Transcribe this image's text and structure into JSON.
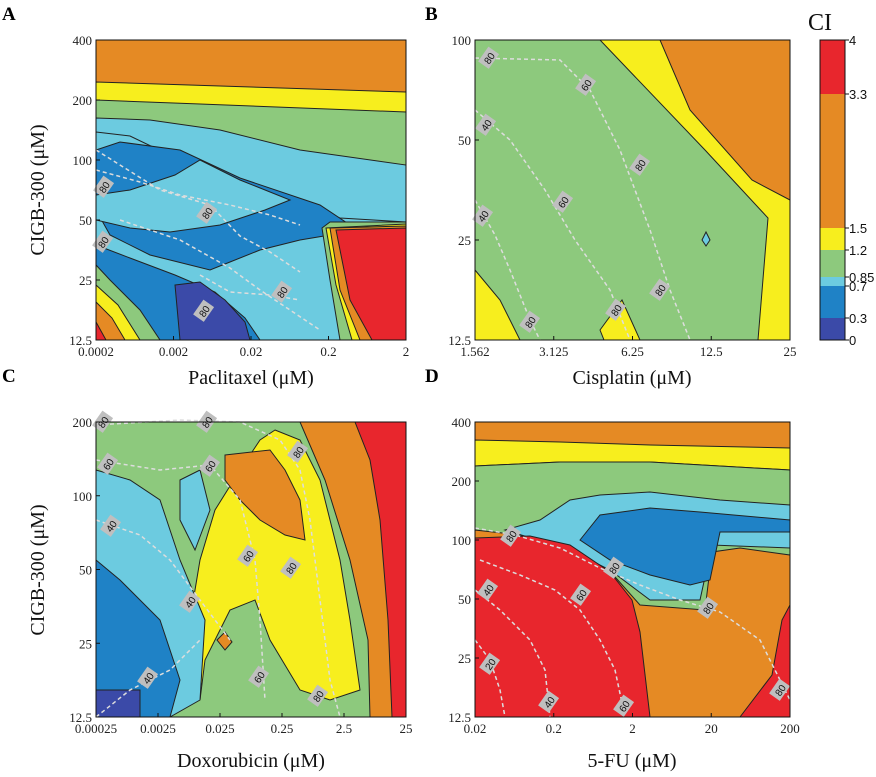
{
  "colors": {
    "ci_0_0.3": "#3b4aa8",
    "ci_0.3_0.7": "#1f82c6",
    "ci_0.7_0.85": "#6ccbe0",
    "ci_0.85_1.2": "#8dc97d",
    "ci_1.2_1.5": "#f7ee1e",
    "ci_1.5_3.3": "#e58a24",
    "ci_3.3_4": "#e8262d",
    "contour_line": "#222222",
    "isobologram_line": "#dddddd",
    "isobologram_label_bg": "#bfbfbf"
  },
  "colorbar": {
    "title": "CI",
    "ticks": [
      "4",
      "3.3",
      "1.5",
      "1.2",
      "0.85",
      "0.7",
      "0.3",
      "0"
    ]
  },
  "chart_data": [
    {
      "panel": "A",
      "type": "heatmap",
      "subtype": "contour",
      "xlabel": "Paclitaxel (μM)",
      "ylabel": "CIGB-300 (μM)",
      "x_ticks": [
        "0.0002",
        "0.002",
        "0.02",
        "0.2",
        "2"
      ],
      "y_ticks": [
        "400",
        "200",
        "100",
        "50",
        "25",
        "12.5"
      ],
      "x_scale": "log",
      "y_scale": "log",
      "isobologram_labels": [
        "80",
        "80",
        "80",
        "80",
        "80"
      ],
      "regions": [
        {
          "ci": "1.5-3.3",
          "area": "top"
        },
        {
          "ci": "1.2-1.5",
          "area": "upper band"
        },
        {
          "ci": "0.85-1.2",
          "area": "band"
        },
        {
          "ci": "0.7-0.85",
          "area": "band"
        },
        {
          "ci": "0.3-0.7",
          "area": "center"
        },
        {
          "ci": "0-0.3",
          "area": "low center"
        },
        {
          "ci": "3.3-4",
          "area": "lower right"
        }
      ]
    },
    {
      "panel": "B",
      "type": "heatmap",
      "subtype": "contour",
      "xlabel": "Cisplatin (μM)",
      "ylabel": "",
      "x_ticks": [
        "1.562",
        "3.125",
        "6.25",
        "12.5",
        "25"
      ],
      "y_ticks": [
        "100",
        "50",
        "25",
        "12.5"
      ],
      "x_scale": "log",
      "y_scale": "log",
      "isobologram_labels": [
        "80",
        "60",
        "40",
        "80",
        "60",
        "40",
        "80",
        "80",
        "80"
      ],
      "regions": [
        {
          "ci": "0.85-1.2",
          "area": "most of panel"
        },
        {
          "ci": "1.2-1.5",
          "area": "diagonal band and corners"
        },
        {
          "ci": "1.5-3.3",
          "area": "upper right"
        },
        {
          "ci": "0.7-0.85",
          "area": "small spot"
        }
      ]
    },
    {
      "panel": "C",
      "type": "heatmap",
      "subtype": "contour",
      "xlabel": "Doxorubicin (μM)",
      "ylabel": "CIGB-300 (μM)",
      "x_ticks": [
        "0.00025",
        "0.0025",
        "0.025",
        "0.25",
        "2.5",
        "25"
      ],
      "y_ticks": [
        "200",
        "100",
        "50",
        "25",
        "12.5"
      ],
      "x_scale": "log",
      "y_scale": "log",
      "isobologram_labels": [
        "80",
        "80",
        "60",
        "60",
        "80",
        "40",
        "60",
        "80",
        "40",
        "40",
        "60",
        "80"
      ],
      "regions": [
        {
          "ci": "0.85-1.2",
          "area": "left/center"
        },
        {
          "ci": "0.7-0.85",
          "area": "left"
        },
        {
          "ci": "0.3-0.7",
          "area": "lower left"
        },
        {
          "ci": "0-0.3",
          "area": "bottom left corner"
        },
        {
          "ci": "1.2-1.5",
          "area": "center"
        },
        {
          "ci": "1.5-3.3",
          "area": "right"
        },
        {
          "ci": "3.3-4",
          "area": "right edge"
        }
      ]
    },
    {
      "panel": "D",
      "type": "heatmap",
      "subtype": "contour",
      "xlabel": "5-FU (μM)",
      "ylabel": "",
      "x_ticks": [
        "0.02",
        "0.2",
        "2",
        "20",
        "200"
      ],
      "y_ticks": [
        "400",
        "200",
        "100",
        "50",
        "25",
        "12.5"
      ],
      "x_scale": "log",
      "y_scale": "log",
      "isobologram_labels": [
        "80",
        "80",
        "80",
        "60",
        "40",
        "20",
        "40",
        "60",
        "80"
      ],
      "regions": [
        {
          "ci": "1.5-3.3",
          "area": "top and lower right"
        },
        {
          "ci": "1.2-1.5",
          "area": "upper band"
        },
        {
          "ci": "0.85-1.2",
          "area": "middle band"
        },
        {
          "ci": "0.7-0.85",
          "area": "middle"
        },
        {
          "ci": "0.3-0.7",
          "area": "middle right"
        },
        {
          "ci": "3.3-4",
          "area": "lower left and bottom right"
        }
      ]
    }
  ]
}
